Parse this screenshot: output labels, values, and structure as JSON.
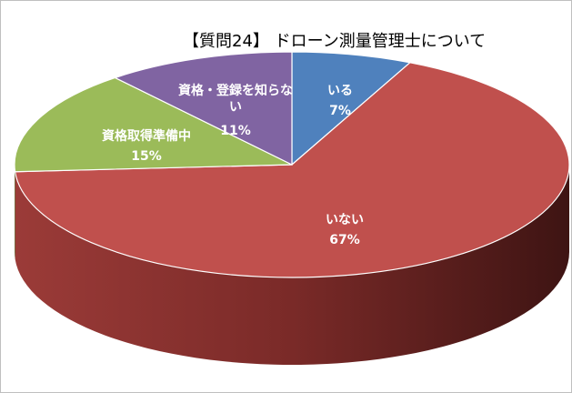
{
  "chart_data": {
    "type": "pie3d",
    "title": "【質問24】 ドローン測量管理士について",
    "categories": [
      "いる",
      "いない",
      "資格取得準備中",
      "資格・登録を知らない"
    ],
    "values": [
      7,
      67,
      15,
      11
    ],
    "value_labels": [
      "7%",
      "67%",
      "15%",
      "11%"
    ],
    "colors": [
      "#4f81bd",
      "#c0504d",
      "#9bbb59",
      "#8064a2"
    ]
  }
}
